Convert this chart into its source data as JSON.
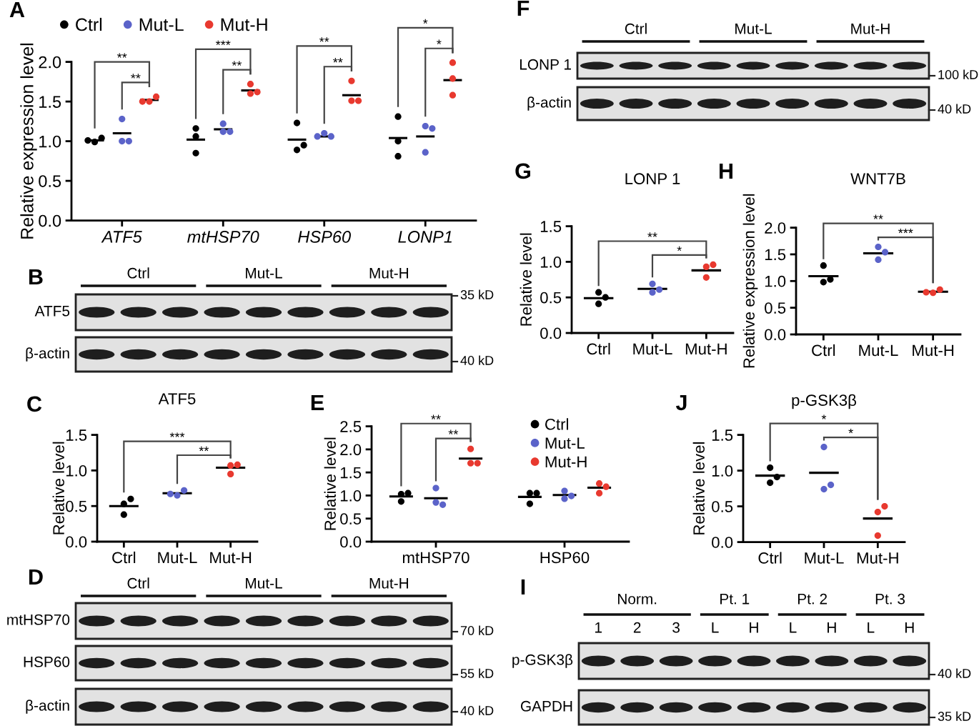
{
  "chart_data": [
    {
      "type": "scatter",
      "ylabel": "Relative expression level",
      "categories": [
        "ATF5",
        "mtHSP70",
        "HSP60",
        "LONP1"
      ],
      "series": [
        {
          "name": "Ctrl",
          "color": "#000000",
          "x": [
            "ATF5",
            "ATF5",
            "ATF5",
            "mtHSP70",
            "mtHSP70",
            "mtHSP70",
            "HSP60",
            "HSP60",
            "HSP60",
            "LONP1",
            "LONP1",
            "LONP1"
          ],
          "values": [
            0.99,
            1.04,
            1.01,
            0.85,
            1.06,
            1.16,
            1.23,
            0.89,
            0.95,
            1.31,
            1.0,
            0.81
          ]
        },
        {
          "name": "Mut-L",
          "color": "#5b63c9",
          "x": [
            "ATF5",
            "ATF5",
            "ATF5",
            "mtHSP70",
            "mtHSP70",
            "mtHSP70",
            "HSP60",
            "HSP60",
            "HSP60",
            "LONP1",
            "LONP1",
            "LONP1"
          ],
          "values": [
            1.28,
            1.0,
            1.0,
            1.22,
            1.12,
            1.12,
            1.1,
            1.06,
            1.06,
            1.19,
            1.16,
            0.86
          ]
        },
        {
          "name": "Mut-H",
          "color": "#e8392f",
          "x": [
            "ATF5",
            "ATF5",
            "ATF5",
            "mtHSP70",
            "mtHSP70",
            "mtHSP70",
            "HSP60",
            "HSP60",
            "HSP60",
            "LONP1",
            "LONP1",
            "LONP1"
          ],
          "values": [
            1.5,
            1.56,
            1.5,
            1.72,
            1.6,
            1.62,
            1.76,
            1.51,
            1.51,
            1.99,
            1.79,
            1.58
          ]
        },
        {
          "type": "box",
          "color": "#000000",
          "boxes": [
            {
              "low": 1.01,
              "q1": 1.01,
              "median": 1.01,
              "q3": 1.01,
              "high": 1.01
            },
            {
              "low": 1.02,
              "q1": 1.02,
              "median": 1.02,
              "q3": 1.02,
              "high": 1.02
            },
            {
              "low": 1.02,
              "q1": 1.02,
              "median": 1.02,
              "q3": 1.02,
              "high": 1.02
            },
            {
              "low": 1.04,
              "q1": 1.04,
              "median": 1.04,
              "q3": 1.04,
              "high": 1.04
            }
          ]
        },
        {
          "type": "box",
          "color": "#000000",
          "boxes": [
            {
              "low": 1.1,
              "q1": 1.1,
              "median": 1.1,
              "q3": 1.1,
              "high": 1.1
            },
            {
              "low": 1.15,
              "q1": 1.15,
              "median": 1.15,
              "q3": 1.15,
              "high": 1.15
            },
            {
              "low": 1.06,
              "q1": 1.06,
              "median": 1.06,
              "q3": 1.06,
              "high": 1.06
            },
            {
              "low": 1.06,
              "q1": 1.06,
              "median": 1.06,
              "q3": 1.06,
              "high": 1.06
            }
          ]
        },
        {
          "type": "box",
          "color": "#000000",
          "boxes": [
            {
              "low": 1.52,
              "q1": 1.52,
              "median": 1.52,
              "q3": 1.52,
              "high": 1.52
            },
            {
              "low": 1.64,
              "q1": 1.64,
              "median": 1.64,
              "q3": 1.64,
              "high": 1.64
            },
            {
              "low": 1.58,
              "q1": 1.58,
              "median": 1.58,
              "q3": 1.58,
              "high": 1.58
            },
            {
              "low": 1.77,
              "q1": 1.77,
              "median": 1.77,
              "q3": 1.77,
              "high": 1.77
            }
          ]
        }
      ],
      "ylim": [
        0,
        2
      ],
      "yticks": [
        {
          "value": 0,
          "label": "0.0"
        },
        {
          "value": 0.5,
          "label": "0.5"
        },
        {
          "value": 1,
          "label": "1.0"
        },
        {
          "value": 1.5,
          "label": "1.5"
        },
        {
          "value": 2,
          "label": "2.0"
        }
      ],
      "marker": "circle",
      "legend": "top",
      "annotations": [
        "A",
        "**",
        "**",
        "***",
        "**",
        "**",
        "**",
        "*",
        "*"
      ]
    },
    {
      "type": "other",
      "categories": [
        "Ctrl",
        "Mut-L",
        "Mut-H"
      ],
      "y_categories": [
        "LONP 1",
        "β-actin"
      ],
      "y2_categories": [
        "100 kD",
        "40 kD"
      ],
      "annotations": [
        "F"
      ]
    },
    {
      "type": "other",
      "categories": [
        "Ctrl",
        "Mut-L",
        "Mut-H"
      ],
      "y_categories": [
        "ATF5",
        "β-actin"
      ],
      "y2_categories": [
        "35 kD",
        "40 kD"
      ],
      "annotations": [
        "B"
      ]
    },
    {
      "type": "scatter",
      "title": "LONP 1",
      "ylabel": "Relative level",
      "categories": [
        "Ctrl",
        "Mut-L",
        "Mut-H"
      ],
      "series": [
        {
          "color": "#000000",
          "x": [
            "Ctrl",
            "Ctrl",
            "Ctrl"
          ],
          "values": [
            0.41,
            0.57,
            0.5
          ]
        },
        {
          "color": "#5b63c9",
          "x": [
            "Mut-L",
            "Mut-L",
            "Mut-L"
          ],
          "values": [
            0.57,
            0.69,
            0.61
          ]
        },
        {
          "color": "#e8392f",
          "x": [
            "Mut-H",
            "Mut-H",
            "Mut-H"
          ],
          "values": [
            0.78,
            0.93,
            0.96
          ]
        },
        {
          "type": "box",
          "color": "#000000",
          "boxes": [
            {
              "low": 0.49,
              "q1": 0.49,
              "median": 0.49,
              "q3": 0.49,
              "high": 0.49
            },
            {
              "low": 0.62,
              "q1": 0.62,
              "median": 0.62,
              "q3": 0.62,
              "high": 0.62
            },
            {
              "low": 0.88,
              "q1": 0.88,
              "median": 0.88,
              "q3": 0.88,
              "high": 0.88
            }
          ]
        }
      ],
      "ylim": [
        0,
        1.5
      ],
      "yticks": [
        {
          "value": 0,
          "label": "0.0"
        },
        {
          "value": 0.5,
          "label": "0.5"
        },
        {
          "value": 1,
          "label": "1.0"
        },
        {
          "value": 1.5,
          "label": "1.5"
        }
      ],
      "marker": "circle",
      "annotations": [
        "G",
        "**",
        "*"
      ]
    },
    {
      "type": "scatter",
      "title": "WNT7B",
      "ylabel": "Relative expression level",
      "categories": [
        "Ctrl",
        "Mut-L",
        "Mut-H"
      ],
      "series": [
        {
          "color": "#000000",
          "x": [
            "Ctrl",
            "Ctrl",
            "Ctrl"
          ],
          "values": [
            0.98,
            1.29,
            1.03
          ]
        },
        {
          "color": "#5b63c9",
          "x": [
            "Mut-L",
            "Mut-L",
            "Mut-L"
          ],
          "values": [
            1.4,
            1.64,
            1.54
          ]
        },
        {
          "color": "#e8392f",
          "x": [
            "Mut-H",
            "Mut-H",
            "Mut-H"
          ],
          "values": [
            0.78,
            0.84,
            0.79
          ]
        },
        {
          "type": "box",
          "color": "#000000",
          "boxes": [
            {
              "low": 1.09,
              "q1": 1.09,
              "median": 1.09,
              "q3": 1.09,
              "high": 1.09
            },
            {
              "low": 1.52,
              "q1": 1.52,
              "median": 1.52,
              "q3": 1.52,
              "high": 1.52
            },
            {
              "low": 0.8,
              "q1": 0.8,
              "median": 0.8,
              "q3": 0.8,
              "high": 0.8
            }
          ]
        }
      ],
      "ylim": [
        0,
        2
      ],
      "yticks": [
        {
          "value": 0,
          "label": "0.0"
        },
        {
          "value": 0.5,
          "label": "0.5"
        },
        {
          "value": 1,
          "label": "1.0"
        },
        {
          "value": 1.5,
          "label": "1.5"
        },
        {
          "value": 2,
          "label": "2.0"
        }
      ],
      "marker": "circle",
      "annotations": [
        "H",
        "**",
        "***"
      ]
    },
    {
      "type": "scatter",
      "title": "ATF5",
      "ylabel": "Relative level",
      "categories": [
        "Ctrl",
        "Mut-L",
        "Mut-H"
      ],
      "series": [
        {
          "color": "#000000",
          "x": [
            "Ctrl",
            "Ctrl",
            "Ctrl"
          ],
          "values": [
            0.53,
            0.6,
            0.38
          ]
        },
        {
          "color": "#5b63c9",
          "x": [
            "Mut-L",
            "Mut-L",
            "Mut-L"
          ],
          "values": [
            0.65,
            0.72,
            0.67
          ]
        },
        {
          "color": "#e8392f",
          "x": [
            "Mut-H",
            "Mut-H",
            "Mut-H"
          ],
          "values": [
            1.07,
            1.08,
            0.95
          ]
        },
        {
          "type": "box",
          "color": "#000000",
          "boxes": [
            {
              "low": 0.5,
              "q1": 0.5,
              "median": 0.5,
              "q3": 0.5,
              "high": 0.5
            },
            {
              "low": 0.68,
              "q1": 0.68,
              "median": 0.68,
              "q3": 0.68,
              "high": 0.68
            },
            {
              "low": 1.04,
              "q1": 1.04,
              "median": 1.04,
              "q3": 1.04,
              "high": 1.04
            }
          ]
        }
      ],
      "ylim": [
        0,
        1.5
      ],
      "yticks": [
        {
          "value": 0,
          "label": "0.0"
        },
        {
          "value": 0.5,
          "label": "0.5"
        },
        {
          "value": 1,
          "label": "1.0"
        },
        {
          "value": 1.5,
          "label": "1.5"
        }
      ],
      "marker": "circle",
      "annotations": [
        "C",
        "***",
        "**"
      ]
    },
    {
      "type": "scatter",
      "ylabel": "Relative level",
      "categories": [
        "mtHSP70",
        "HSP60"
      ],
      "series": [
        {
          "name": "Ctrl",
          "color": "#000000",
          "x": [
            "mtHSP70",
            "mtHSP70",
            "mtHSP70",
            "HSP60",
            "HSP60",
            "HSP60"
          ],
          "values": [
            1.03,
            1.05,
            0.87,
            1.05,
            1.05,
            0.82
          ]
        },
        {
          "name": "Mut-L",
          "color": "#5b63c9",
          "x": [
            "mtHSP70",
            "mtHSP70",
            "mtHSP70",
            "HSP60",
            "HSP60",
            "HSP60"
          ],
          "values": [
            1.16,
            0.85,
            0.8,
            1.1,
            0.93,
            0.99
          ]
        },
        {
          "name": "Mut-H",
          "color": "#e8392f",
          "x": [
            "mtHSP70",
            "mtHSP70",
            "mtHSP70",
            "HSP60",
            "HSP60",
            "HSP60"
          ],
          "values": [
            2.01,
            1.7,
            1.7,
            1.26,
            1.19,
            1.05
          ]
        },
        {
          "type": "box",
          "color": "#000000",
          "boxes": [
            {
              "low": 0.98,
              "q1": 0.98,
              "median": 0.98,
              "q3": 0.98,
              "high": 0.98
            },
            {
              "low": 0.97,
              "q1": 0.97,
              "median": 0.97,
              "q3": 0.97,
              "high": 0.97
            }
          ]
        },
        {
          "type": "box",
          "color": "#000000",
          "boxes": [
            {
              "low": 0.94,
              "q1": 0.94,
              "median": 0.94,
              "q3": 0.94,
              "high": 0.94
            },
            {
              "low": 1.01,
              "q1": 1.01,
              "median": 1.01,
              "q3": 1.01,
              "high": 1.01
            }
          ]
        },
        {
          "type": "box",
          "color": "#000000",
          "boxes": [
            {
              "low": 1.8,
              "q1": 1.8,
              "median": 1.8,
              "q3": 1.8,
              "high": 1.8
            },
            {
              "low": 1.17,
              "q1": 1.17,
              "median": 1.17,
              "q3": 1.17,
              "high": 1.17
            }
          ]
        }
      ],
      "ylim": [
        0,
        2.5
      ],
      "yticks": [
        {
          "value": 0,
          "label": "0.0"
        },
        {
          "value": 0.5,
          "label": "0.5"
        },
        {
          "value": 1,
          "label": "1.0"
        },
        {
          "value": 1.5,
          "label": "1.5"
        },
        {
          "value": 2,
          "label": "2.0"
        },
        {
          "value": 2.5,
          "label": "2.5"
        }
      ],
      "marker": "circle",
      "legend": "top right",
      "annotations": [
        "E",
        "**",
        "**"
      ]
    },
    {
      "type": "scatter",
      "title": "p-GSK3β",
      "ylabel": "Relative level",
      "categories": [
        "Ctrl",
        "Mut-L",
        "Mut-H"
      ],
      "series": [
        {
          "color": "#000000",
          "x": [
            "Ctrl",
            "Ctrl",
            "Ctrl"
          ],
          "values": [
            0.83,
            1.04,
            0.91
          ]
        },
        {
          "color": "#5b63c9",
          "x": [
            "Mut-L",
            "Mut-L",
            "Mut-L"
          ],
          "values": [
            0.74,
            0.8,
            1.33
          ]
        },
        {
          "color": "#e8392f",
          "x": [
            "Mut-H",
            "Mut-H",
            "Mut-H"
          ],
          "values": [
            0.42,
            0.5,
            0.09
          ]
        },
        {
          "type": "box",
          "color": "#000000",
          "boxes": [
            {
              "low": 0.93,
              "q1": 0.93,
              "median": 0.93,
              "q3": 0.93,
              "high": 0.93
            },
            {
              "low": 0.97,
              "q1": 0.97,
              "median": 0.97,
              "q3": 0.97,
              "high": 0.97
            },
            {
              "low": 0.33,
              "q1": 0.33,
              "median": 0.33,
              "q3": 0.33,
              "high": 0.33
            }
          ]
        }
      ],
      "ylim": [
        0,
        1.5
      ],
      "yticks": [
        {
          "value": 0,
          "label": "0.0"
        },
        {
          "value": 0.5,
          "label": "0.5"
        },
        {
          "value": 1,
          "label": "1.0"
        },
        {
          "value": 1.5,
          "label": "1.5"
        }
      ],
      "marker": "circle",
      "annotations": [
        "J",
        "*",
        "*"
      ]
    },
    {
      "type": "other",
      "categories": [
        "Ctrl",
        "Mut-L",
        "Mut-H"
      ],
      "y_categories": [
        "mtHSP70",
        "HSP60",
        "β-actin"
      ],
      "y2_categories": [
        "70 kD",
        "55 kD",
        "40 kD"
      ],
      "annotations": [
        "D"
      ]
    },
    {
      "type": "other",
      "categories": [
        "Norm.",
        "Pt. 1",
        "Pt. 2",
        "Pt. 3"
      ],
      "y_categories": [
        "p-GSK3β",
        "GAPDH"
      ],
      "y2_categories": [
        "40 kD",
        "35 kD"
      ],
      "annotations": [
        "I",
        "1",
        "2",
        "3",
        "L",
        "H",
        "L",
        "H",
        "L",
        "H"
      ]
    }
  ]
}
